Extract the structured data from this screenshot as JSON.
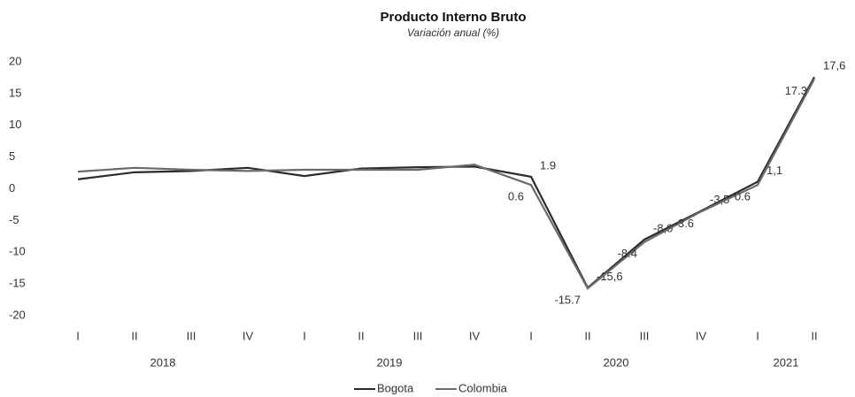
{
  "chart_data": {
    "type": "line",
    "title": "Producto Interno Bruto",
    "subtitle": "Variación anual (%)",
    "categories": [
      "I",
      "II",
      "III",
      "IV",
      "I",
      "II",
      "III",
      "IV",
      "I",
      "II",
      "III",
      "IV",
      "I",
      "II"
    ],
    "years": [
      "2018",
      "2019",
      "2020",
      "2021"
    ],
    "series": [
      {
        "name": "Bogota",
        "color": "#2b2b2b",
        "values": [
          1.5,
          2.6,
          2.8,
          3.3,
          2.0,
          3.2,
          3.4,
          3.5,
          1.9,
          -15.6,
          -8.0,
          -3.5,
          1.1,
          17.6
        ],
        "value_labels": [
          null,
          null,
          null,
          null,
          null,
          null,
          null,
          null,
          "1.9",
          "-15,6",
          "-8,0",
          "-3,5",
          "1,1",
          "17,6"
        ]
      },
      {
        "name": "Colombia",
        "color": "#6a6a6a",
        "values": [
          2.7,
          3.3,
          3.0,
          2.8,
          3.0,
          3.0,
          3.0,
          3.8,
          0.6,
          -15.7,
          -8.4,
          -3.6,
          0.6,
          17.3
        ],
        "value_labels": [
          null,
          null,
          null,
          null,
          null,
          null,
          null,
          null,
          "0.6",
          "-15.7",
          "-8.4",
          "-3.6",
          "0.6",
          "17.3"
        ]
      }
    ],
    "ylim": [
      -20,
      20
    ],
    "yticks": [
      -20,
      -15,
      -10,
      -5,
      0,
      5,
      10,
      15,
      20
    ],
    "grid": false,
    "legend": "bottom"
  }
}
